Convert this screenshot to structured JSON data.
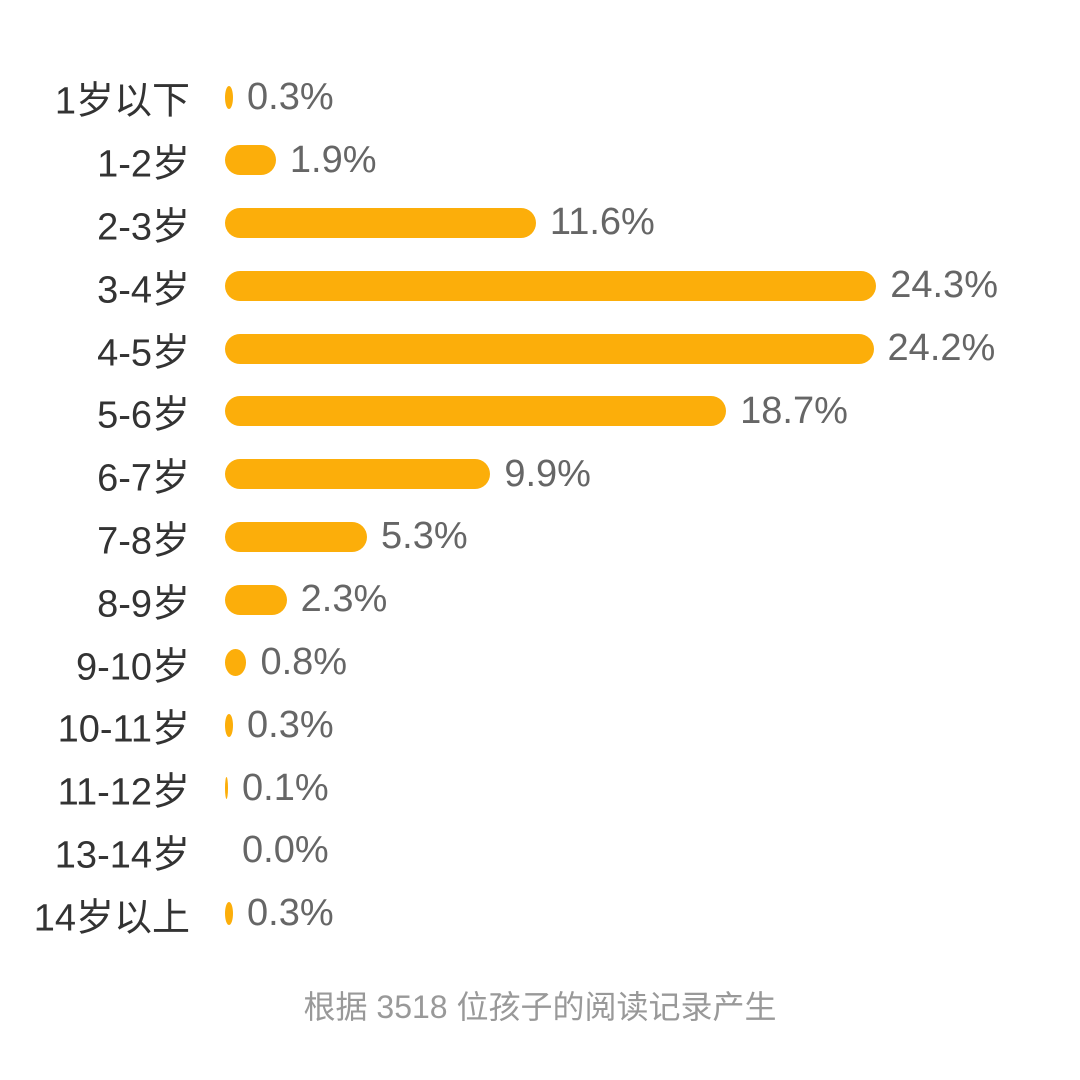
{
  "chart_data": {
    "type": "bar",
    "orientation": "horizontal",
    "title": "",
    "xlabel": "",
    "ylabel": "",
    "grid": false,
    "legend": null,
    "color": "#FCAE0A",
    "categories": [
      "1岁以下",
      "1-2岁",
      "2-3岁",
      "3-4岁",
      "4-5岁",
      "5-6岁",
      "6-7岁",
      "7-8岁",
      "8-9岁",
      "9-10岁",
      "10-11岁",
      "11-12岁",
      "13-14岁",
      "14岁以上"
    ],
    "values": [
      0.3,
      1.9,
      11.6,
      24.3,
      24.2,
      18.7,
      9.9,
      5.3,
      2.3,
      0.8,
      0.3,
      0.1,
      0.0,
      0.3
    ],
    "value_labels": [
      "0.3%",
      "1.9%",
      "11.6%",
      "24.3%",
      "24.2%",
      "18.7%",
      "9.9%",
      "5.3%",
      "2.3%",
      "0.8%",
      "0.3%",
      "0.1%",
      "0.0%",
      "0.3%"
    ],
    "unit": "%",
    "annotation": "根据 3518 位孩子的阅读记录产生"
  },
  "footnote": "根据 3518 位孩子的阅读记录产生"
}
